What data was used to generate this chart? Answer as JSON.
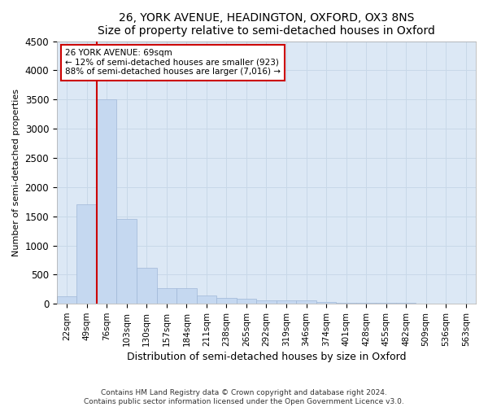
{
  "title": "26, YORK AVENUE, HEADINGTON, OXFORD, OX3 8NS",
  "subtitle": "Size of property relative to semi-detached houses in Oxford",
  "xlabel": "Distribution of semi-detached houses by size in Oxford",
  "ylabel": "Number of semi-detached properties",
  "footer_line1": "Contains HM Land Registry data © Crown copyright and database right 2024.",
  "footer_line2": "Contains public sector information licensed under the Open Government Licence v3.0.",
  "categories": [
    "22sqm",
    "49sqm",
    "76sqm",
    "103sqm",
    "130sqm",
    "157sqm",
    "184sqm",
    "211sqm",
    "238sqm",
    "265sqm",
    "292sqm",
    "319sqm",
    "346sqm",
    "374sqm",
    "401sqm",
    "428sqm",
    "455sqm",
    "482sqm",
    "509sqm",
    "536sqm",
    "563sqm"
  ],
  "values": [
    130,
    1700,
    3500,
    1450,
    610,
    265,
    265,
    140,
    95,
    80,
    60,
    55,
    55,
    30,
    20,
    15,
    12,
    10,
    8,
    6,
    5
  ],
  "bar_color": "#c5d8f0",
  "bar_edge_color": "#a0b8d8",
  "grid_color": "#c8d8e8",
  "background_color": "#dce8f5",
  "annotation_text": "26 YORK AVENUE: 69sqm\n← 12% of semi-detached houses are smaller (923)\n88% of semi-detached houses are larger (7,016) →",
  "annotation_box_color": "#ffffff",
  "annotation_box_edge_color": "#cc0000",
  "property_line_x": 1.5,
  "ylim": [
    0,
    4500
  ],
  "yticks": [
    0,
    500,
    1000,
    1500,
    2000,
    2500,
    3000,
    3500,
    4000,
    4500
  ]
}
